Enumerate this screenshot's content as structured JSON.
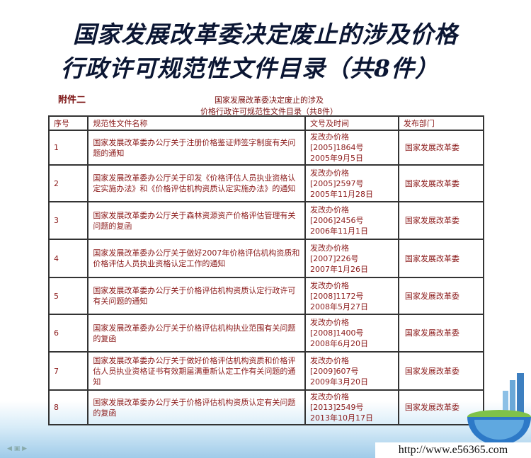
{
  "slide": {
    "title_line1": "国家发展改革委决定废止的涉及价格",
    "title_line2": "行政许可规范性文件目录（共8件）",
    "annex_label": "附件二",
    "doc_title_line1": "国家发展改革委决定废止的涉及",
    "doc_title_line2": "价格行政许可规范性文件目录（共8件）",
    "url": "http://www.e56365.com"
  },
  "table": {
    "headers": [
      "序号",
      "规范性文件名称",
      "文号及时间",
      "发布部门"
    ],
    "rows": [
      {
        "no": "1",
        "name": "国家发展改革委办公厅关于注册价格鉴证师签字制度有关问题的通知",
        "doc": "发改办价格",
        "num": "[2005]1864号",
        "date": "2005年9月5日",
        "dept": "国家发展改革委"
      },
      {
        "no": "2",
        "name": "国家发展改革委办公厅关于印发《价格评估人员执业资格认定实施办法》和《价格评估机构资质认定实施办法》的通知",
        "doc": "发改办价格",
        "num": "[2005]2597号",
        "date": "2005年11月28日",
        "dept": "国家发展改革委"
      },
      {
        "no": "3",
        "name": "国家发展改革委办公厅关于森林资源资产价格评估管理有关问题的复函",
        "doc": "发改办价格",
        "num": "[2006]2456号",
        "date": "2006年11月1日",
        "dept": "国家发展改革委"
      },
      {
        "no": "4",
        "name": "国家发展改革委办公厅关于做好2007年价格评估机构资质和价格评估人员执业资格认定工作的通知",
        "doc": "发改办价格",
        "num": "[2007]226号",
        "date": "2007年1月26日",
        "dept": "国家发展改革委"
      },
      {
        "no": "5",
        "name": "国家发展改革委办公厅关于价格评估机构资质认定行政许可有关问题的通知",
        "doc": "发改办价格",
        "num": "[2008]1172号",
        "date": "2008年5月27日",
        "dept": "国家发展改革委"
      },
      {
        "no": "6",
        "name": "国家发展改革委办公厅关于价格评估机构执业范围有关问题的复函",
        "doc": "发改办价格",
        "num": "[2008]1400号",
        "date": "2008年6月20日",
        "dept": "国家发展改革委"
      },
      {
        "no": "7",
        "name": "国家发展改革委办公厅关于做好价格评估机构资质和价格评估人员执业资格证书有效期届满重新认定工作有关问题的通知",
        "doc": "发改办价格",
        "num": "[2009]607号",
        "date": "2009年3月20日",
        "dept": "国家发展改革委"
      },
      {
        "no": "8",
        "name": "国家发展改革委办公厅关于价格评估机构资质认定有关问题的复函",
        "doc": "发改办价格",
        "num": "[2013]2549号",
        "date": "2013年10月17日",
        "dept": "国家发展改革委"
      }
    ]
  }
}
